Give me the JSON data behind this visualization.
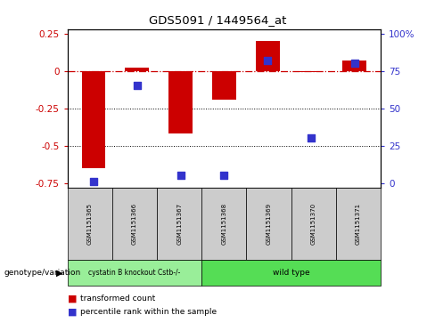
{
  "title": "GDS5091 / 1449564_at",
  "samples": [
    "GSM1151365",
    "GSM1151366",
    "GSM1151367",
    "GSM1151368",
    "GSM1151369",
    "GSM1151370",
    "GSM1151371"
  ],
  "bar_values": [
    -0.65,
    0.02,
    -0.42,
    -0.19,
    0.2,
    -0.01,
    0.07
  ],
  "percentile_pct": [
    1,
    65,
    5,
    5,
    82,
    30,
    80
  ],
  "bar_color": "#cc0000",
  "dot_color": "#3333cc",
  "ylim": [
    -0.78,
    0.28
  ],
  "y_ticks_left": [
    0.25,
    0.0,
    -0.25,
    -0.5,
    -0.75
  ],
  "y_ticks_right_labels": [
    "100%",
    "75",
    "50",
    "25",
    "0"
  ],
  "dotted_lines": [
    -0.25,
    -0.5
  ],
  "group1_indices": [
    0,
    1,
    2
  ],
  "group2_indices": [
    3,
    4,
    5,
    6
  ],
  "group1_label": "cystatin B knockout Cstb-/-",
  "group2_label": "wild type",
  "group1_color": "#99ee99",
  "group2_color": "#55dd55",
  "genotype_label": "genotype/variation",
  "legend_bar_label": "transformed count",
  "legend_dot_label": "percentile rank within the sample",
  "background_color": "#ffffff"
}
